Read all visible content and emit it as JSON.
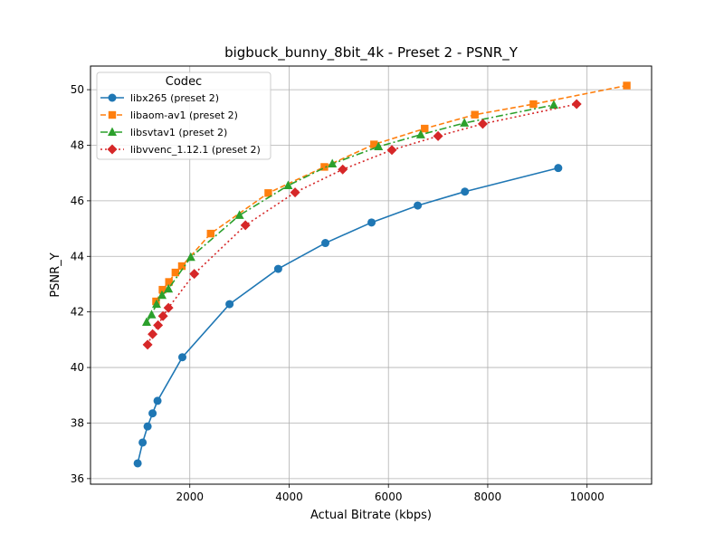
{
  "chart_data": {
    "type": "line",
    "title": "bigbuck_bunny_8bit_4k - Preset 2 - PSNR_Y",
    "xlabel": "Actual Bitrate (kbps)",
    "ylabel": "PSNR_Y",
    "xlim": [
      0,
      11300
    ],
    "ylim": [
      35.8,
      50.85
    ],
    "xticks": [
      2000,
      4000,
      6000,
      8000,
      10000
    ],
    "yticks": [
      36,
      38,
      40,
      42,
      44,
      46,
      48,
      50
    ],
    "grid": true,
    "legend": {
      "title": "Codec",
      "position": "top-left"
    },
    "series": [
      {
        "name": "libx265 (preset 2)",
        "color": "#1f77b4",
        "marker": "circle",
        "dash": "solid",
        "points": [
          [
            950,
            36.55
          ],
          [
            1050,
            37.3
          ],
          [
            1150,
            37.88
          ],
          [
            1250,
            38.35
          ],
          [
            1350,
            38.8
          ],
          [
            1850,
            40.37
          ],
          [
            2800,
            42.28
          ],
          [
            3780,
            43.55
          ],
          [
            4730,
            44.48
          ],
          [
            5660,
            45.22
          ],
          [
            6590,
            45.83
          ],
          [
            7540,
            46.33
          ],
          [
            9420,
            47.18
          ]
        ]
      },
      {
        "name": "libaom-av1 (preset 2)",
        "color": "#ff7f0e",
        "marker": "square",
        "dash": "dashed",
        "points": [
          [
            1320,
            42.38
          ],
          [
            1450,
            42.8
          ],
          [
            1580,
            43.08
          ],
          [
            1710,
            43.42
          ],
          [
            1840,
            43.65
          ],
          [
            2420,
            44.82
          ],
          [
            3580,
            46.28
          ],
          [
            4710,
            47.22
          ],
          [
            5710,
            48.03
          ],
          [
            6730,
            48.6
          ],
          [
            7740,
            49.1
          ],
          [
            8920,
            49.48
          ],
          [
            10800,
            50.15
          ]
        ]
      },
      {
        "name": "libsvtav1 (preset 2)",
        "color": "#2ca02c",
        "marker": "triangle",
        "dash": "dashdot",
        "points": [
          [
            1130,
            41.63
          ],
          [
            1230,
            41.9
          ],
          [
            1330,
            42.28
          ],
          [
            1440,
            42.6
          ],
          [
            1570,
            42.83
          ],
          [
            2020,
            43.97
          ],
          [
            3000,
            45.48
          ],
          [
            3980,
            46.55
          ],
          [
            4870,
            47.33
          ],
          [
            5800,
            47.95
          ],
          [
            6650,
            48.38
          ],
          [
            7530,
            48.8
          ],
          [
            9330,
            49.45
          ]
        ]
      },
      {
        "name": "libvvenc_1.12.1 (preset 2)",
        "color": "#d62728",
        "marker": "diamond",
        "dash": "dotted",
        "points": [
          [
            1150,
            40.82
          ],
          [
            1250,
            41.2
          ],
          [
            1360,
            41.52
          ],
          [
            1460,
            41.85
          ],
          [
            1570,
            42.15
          ],
          [
            2090,
            43.37
          ],
          [
            3120,
            45.12
          ],
          [
            4120,
            46.3
          ],
          [
            5080,
            47.13
          ],
          [
            6070,
            47.83
          ],
          [
            7000,
            48.33
          ],
          [
            7900,
            48.77
          ],
          [
            9790,
            49.48
          ]
        ]
      }
    ]
  }
}
